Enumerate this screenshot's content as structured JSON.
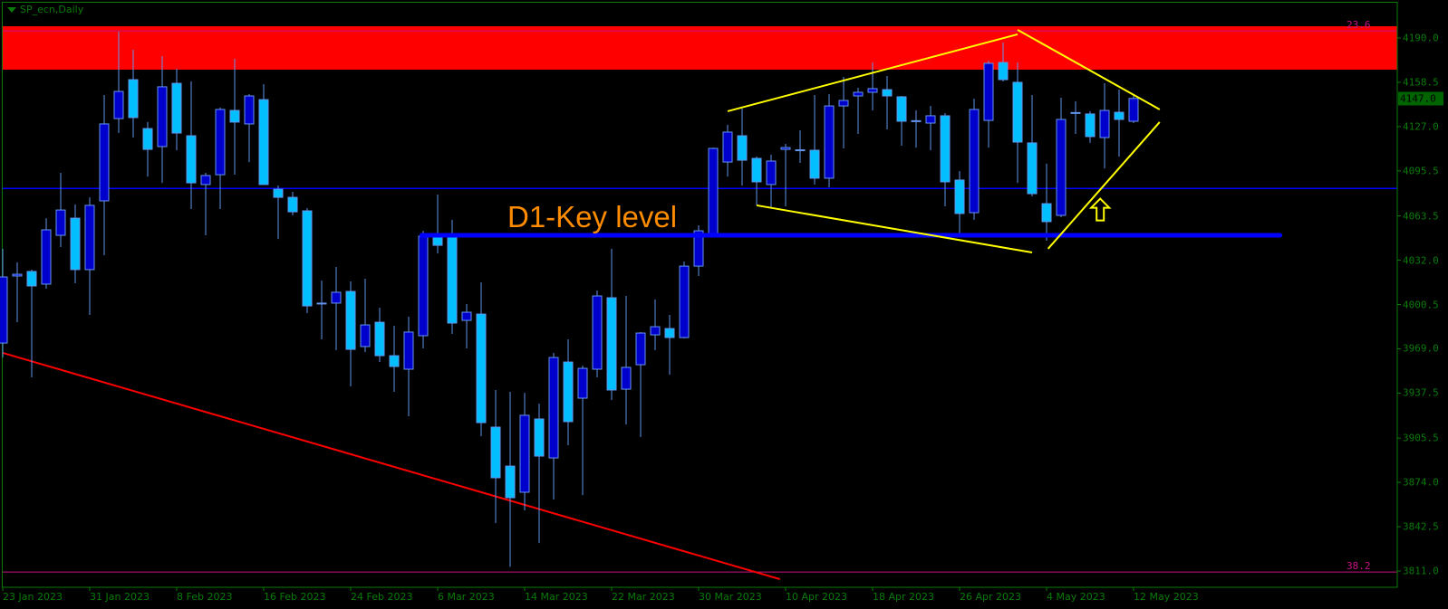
{
  "window": {
    "title": "SP_ecn,Daily"
  },
  "colors": {
    "bull_body": "#0000cd",
    "bear_body": "#00bfff",
    "wick": "#6495ed",
    "axis": "#0a7a0a",
    "zone": "#ff0000",
    "level_line": "#0000ff",
    "trend_red": "#ff0000",
    "pattern": "#ffff00",
    "fib": "#c71585",
    "annotation": "#ff8c00"
  },
  "annotation": {
    "text": "D1-Key level"
  },
  "fib_labels": [
    {
      "text": "23.6",
      "price": 4195.1
    },
    {
      "text": "38.2",
      "price": 3810.3
    }
  ],
  "price_axis": {
    "labels": [
      "4190.0",
      "4158.5",
      "4127.0",
      "4095.5",
      "4063.5",
      "4032.0",
      "4000.5",
      "3969.0",
      "3937.5",
      "3905.5",
      "3874.0",
      "3842.5",
      "3811.0"
    ],
    "current_price": "4147.0"
  },
  "chart_data": {
    "type": "candlestick",
    "title": "SP_ecn,Daily",
    "ylim": [
      3811.0,
      4190.0
    ],
    "grid": false,
    "date_labels": [
      "23 Jan 2023",
      "31 Jan 2023",
      "8 Feb 2023",
      "16 Feb 2023",
      "24 Feb 2023",
      "6 Mar 2023",
      "14 Mar 2023",
      "22 Mar 2023",
      "30 Mar 2023",
      "10 Apr 2023",
      "18 Apr 2023",
      "26 Apr 2023",
      "4 May 2023",
      "12 May 2023"
    ],
    "ohlc": [
      [
        3973.1,
        4040.1,
        3962.8,
        4020.1
      ],
      [
        4020.8,
        4030.4,
        3987.9,
        4022.0
      ],
      [
        4024.0,
        4025.3,
        3948.7,
        4013.7
      ],
      [
        4015.0,
        4061.9,
        4011.8,
        4053.6
      ],
      [
        4049.7,
        4094.1,
        4041.4,
        4067.7
      ],
      [
        4061.9,
        4071.6,
        4015.6,
        4025.3
      ],
      [
        4025.3,
        4076.7,
        3993.1,
        4071.0
      ],
      [
        4074.2,
        4149.5,
        4035.6,
        4128.9
      ],
      [
        4132.7,
        4194.5,
        4122.4,
        4152.0
      ],
      [
        4160.4,
        4181.6,
        4119.2,
        4133.4
      ],
      [
        4125.6,
        4130.2,
        4091.5,
        4110.8
      ],
      [
        4112.8,
        4177.1,
        4087.0,
        4155.3
      ],
      [
        4157.8,
        4168.1,
        4110.2,
        4122.4
      ],
      [
        4120.5,
        4159.1,
        4068.4,
        4087.0
      ],
      [
        4085.8,
        4094.1,
        4049.7,
        4092.2
      ],
      [
        4092.8,
        4140.5,
        4068.4,
        4139.2
      ],
      [
        4138.5,
        4175.2,
        4092.8,
        4130.2
      ],
      [
        4128.9,
        4150.1,
        4101.8,
        4148.8
      ],
      [
        4146.2,
        4157.2,
        4085.8,
        4085.8
      ],
      [
        4082.5,
        4085.1,
        4047.1,
        4076.7
      ],
      [
        4076.7,
        4080.6,
        4063.9,
        4066.4
      ],
      [
        4067.1,
        4069.0,
        3994.4,
        3999.5
      ],
      [
        4001.5,
        4017.5,
        3975.7,
        4001.0
      ],
      [
        4001.5,
        4027.2,
        3968.0,
        4009.2
      ],
      [
        4009.8,
        4016.9,
        3942.3,
        3968.6
      ],
      [
        3970.6,
        4018.8,
        3966.7,
        3986.0
      ],
      [
        3987.9,
        3998.2,
        3959.6,
        3964.1
      ],
      [
        3964.1,
        3985.4,
        3938.4,
        3956.4
      ],
      [
        3954.5,
        3991.8,
        3921.0,
        3980.9
      ],
      [
        3978.3,
        4052.9,
        3969.3,
        4049.1
      ],
      [
        4048.4,
        4078.7,
        4036.8,
        4042.6
      ],
      [
        4049.7,
        4060.7,
        3979.6,
        3987.3
      ],
      [
        3989.2,
        4000.8,
        3969.3,
        3995.0
      ],
      [
        3993.7,
        4016.3,
        3906.9,
        3916.5
      ],
      [
        3913.3,
        3939.7,
        3845.1,
        3877.3
      ],
      [
        3885.6,
        3938.4,
        3814.0,
        3863.1
      ],
      [
        3867.0,
        3937.7,
        3854.1,
        3921.7
      ],
      [
        3919.1,
        3930.0,
        3830.9,
        3892.7
      ],
      [
        3891.4,
        3966.1,
        3861.8,
        3962.8
      ],
      [
        3959.6,
        3975.7,
        3900.4,
        3917.2
      ],
      [
        3933.9,
        3957.0,
        3865.0,
        3955.1
      ],
      [
        3954.5,
        4010.5,
        3948.7,
        4006.6
      ],
      [
        4005.3,
        4040.1,
        3932.6,
        3939.7
      ],
      [
        3940.3,
        4006.6,
        3915.2,
        3955.8
      ],
      [
        3957.7,
        3980.9,
        3906.2,
        3980.2
      ],
      [
        3978.9,
        4004.0,
        3968.0,
        3984.7
      ],
      [
        3983.4,
        3993.1,
        3950.6,
        3977.0
      ],
      [
        3977.0,
        4031.1,
        3976.4,
        4027.8
      ],
      [
        4027.8,
        4056.8,
        4020.8,
        4052.9
      ],
      [
        4051.0,
        4112.1,
        4048.4,
        4111.5
      ],
      [
        4101.8,
        4128.2,
        4091.5,
        4123.1
      ],
      [
        4120.5,
        4139.8,
        4085.1,
        4103.1
      ],
      [
        4104.4,
        4105.7,
        4071.0,
        4087.7
      ],
      [
        4085.8,
        4107.0,
        4069.0,
        4102.5
      ],
      [
        4110.8,
        4114.7,
        4070.3,
        4112.1
      ],
      [
        4110.2,
        4124.4,
        4101.2,
        4110.5
      ],
      [
        4110.2,
        4149.5,
        4085.8,
        4090.3
      ],
      [
        4090.3,
        4150.1,
        4083.8,
        4141.7
      ],
      [
        4141.7,
        4162.3,
        4111.5,
        4145.6
      ],
      [
        4148.8,
        4154.6,
        4121.8,
        4151.4
      ],
      [
        4151.4,
        4172.6,
        4138.5,
        4154.0
      ],
      [
        4153.3,
        4163.0,
        4125.0,
        4148.8
      ],
      [
        4148.2,
        4148.8,
        4113.4,
        4130.8
      ],
      [
        4130.8,
        4138.5,
        4112.1,
        4131.2
      ],
      [
        4129.5,
        4141.7,
        4110.2,
        4134.7
      ],
      [
        4134.7,
        4136.6,
        4070.3,
        4087.7
      ],
      [
        4089.0,
        4095.4,
        4048.4,
        4065.2
      ],
      [
        4065.8,
        4146.9,
        4060.7,
        4139.2
      ],
      [
        4131.4,
        4173.9,
        4112.1,
        4172.0
      ],
      [
        4172.6,
        4186.8,
        4159.1,
        4160.4
      ],
      [
        4158.5,
        4172.6,
        4087.0,
        4116.0
      ],
      [
        4115.4,
        4149.5,
        4077.4,
        4079.3
      ],
      [
        4072.2,
        4100.6,
        4045.9,
        4059.4
      ],
      [
        4063.9,
        4147.5,
        4062.6,
        4132.1
      ],
      [
        4136.6,
        4145.0,
        4121.8,
        4137.0
      ],
      [
        4136.0,
        4137.9,
        4115.4,
        4119.9
      ],
      [
        4119.2,
        4157.8,
        4097.3,
        4138.5
      ],
      [
        4137.2,
        4153.3,
        4105.7,
        4132.1
      ],
      [
        4130.8,
        4149.5,
        4129.5,
        4147.0
      ]
    ],
    "objects": {
      "resistance_zone": {
        "top": 4198.4,
        "bottom": 4167.5
      },
      "horizontal_line": {
        "price": 4083.0
      },
      "key_level": {
        "price": 4049.7,
        "from_bar": 28.9,
        "to_bar": 88.1
      },
      "fib_lines": [
        4195.1,
        3810.3
      ],
      "red_trendline": [
        [
          0,
          3966.1
        ],
        [
          53.6,
          3805.2
        ]
      ],
      "yellow_lines": [
        [
          [
            50.0,
            4137.9
          ],
          [
            70.0,
            4192.6
          ]
        ],
        [
          [
            70.0,
            4195.8
          ],
          [
            79.8,
            4139.2
          ]
        ],
        [
          [
            52.0,
            4071.0
          ],
          [
            71.0,
            4037.5
          ]
        ],
        [
          [
            72.1,
            4040.1
          ],
          [
            79.8,
            4130.2
          ]
        ]
      ],
      "up_arrow": {
        "bar": 75.7,
        "price": 4068.0
      }
    }
  }
}
